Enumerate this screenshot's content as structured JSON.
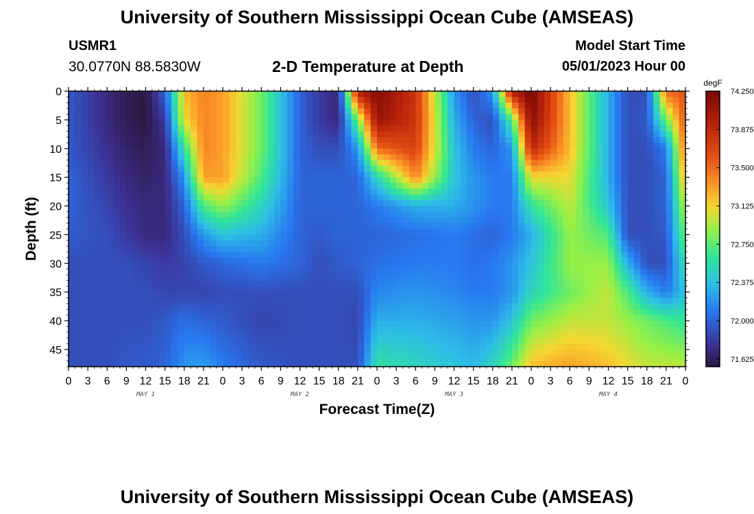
{
  "header": {
    "title": "University of Southern Mississippi Ocean Cube (AMSEAS)",
    "station": "USMR1",
    "coords": "30.0770N  88.5830W",
    "subtitle": "2-D Temperature at Depth",
    "model_start_label": "Model Start Time",
    "model_start_value": "05/01/2023 Hour 00"
  },
  "footer": {
    "title": "University of Southern Mississippi Ocean Cube (AMSEAS)"
  },
  "chart_data": {
    "type": "heatmap",
    "xlabel": "Forecast Time(Z)",
    "ylabel": "Depth (ft)",
    "x_ticks": [
      "0",
      "3",
      "6",
      "9",
      "12",
      "15",
      "18",
      "21",
      "0",
      "3",
      "6",
      "9",
      "12",
      "15",
      "18",
      "21",
      "0",
      "3",
      "6",
      "9",
      "12",
      "15",
      "18",
      "21",
      "0",
      "3",
      "6",
      "9",
      "12",
      "15",
      "18",
      "21",
      "0"
    ],
    "x_range_hours": [
      0,
      96
    ],
    "day_labels": [
      {
        "label": "MAY 1",
        "hour": 12
      },
      {
        "label": "MAY 2",
        "hour": 36
      },
      {
        "label": "MAY 3",
        "hour": 60
      },
      {
        "label": "MAY 4",
        "hour": 84
      }
    ],
    "y_ticks": [
      0,
      5,
      10,
      15,
      20,
      25,
      30,
      35,
      40,
      45
    ],
    "y_range": [
      0,
      48
    ],
    "y_inverted": true,
    "colorbar": {
      "unit": "degF",
      "min": 71.55,
      "max": 74.25,
      "ticks": [
        "74.250",
        "73.875",
        "73.500",
        "73.125",
        "72.750",
        "72.375",
        "72.000",
        "71.625"
      ]
    },
    "depths": [
      0,
      5,
      10,
      15,
      20,
      25,
      30,
      35,
      40,
      48
    ],
    "hours": [
      0,
      6,
      9,
      12,
      15,
      18,
      21,
      24,
      30,
      36,
      39,
      42,
      45,
      48,
      54,
      60,
      63,
      66,
      69,
      72,
      78,
      84,
      87,
      90,
      93,
      96
    ],
    "temperature": [
      [
        71.95,
        71.7,
        71.6,
        71.55,
        72.0,
        73.2,
        73.4,
        73.3,
        72.8,
        72.0,
        71.8,
        71.7,
        74.0,
        74.2,
        73.8,
        72.2,
        71.9,
        72.2,
        74.0,
        74.25,
        73.2,
        72.3,
        71.9,
        71.9,
        73.5,
        73.6
      ],
      [
        71.95,
        71.7,
        71.6,
        71.55,
        71.8,
        73.1,
        73.4,
        73.3,
        72.8,
        72.0,
        71.8,
        71.7,
        72.8,
        74.1,
        73.8,
        72.3,
        72.0,
        71.9,
        72.7,
        74.2,
        73.2,
        72.3,
        71.9,
        71.95,
        72.8,
        73.6
      ],
      [
        71.95,
        71.75,
        71.65,
        71.6,
        71.7,
        72.6,
        73.4,
        73.3,
        72.8,
        72.0,
        71.9,
        71.9,
        72.2,
        73.5,
        73.7,
        72.4,
        72.1,
        72.0,
        72.2,
        73.9,
        73.2,
        72.3,
        71.9,
        71.9,
        72.1,
        73.5
      ],
      [
        72.0,
        71.8,
        71.7,
        71.65,
        71.7,
        72.2,
        73.3,
        73.3,
        72.7,
        72.0,
        72.0,
        72.0,
        72.0,
        72.5,
        73.4,
        72.4,
        72.2,
        72.1,
        72.1,
        73.1,
        73.1,
        72.3,
        71.9,
        71.9,
        72.0,
        73.3
      ],
      [
        72.0,
        71.85,
        71.75,
        71.7,
        71.7,
        72.0,
        72.7,
        72.9,
        72.5,
        72.0,
        72.0,
        72.0,
        72.0,
        72.1,
        72.3,
        72.3,
        72.2,
        72.1,
        72.1,
        72.6,
        73.0,
        72.4,
        71.9,
        71.9,
        72.0,
        73.0
      ],
      [
        71.95,
        71.9,
        71.8,
        71.7,
        71.7,
        71.9,
        72.2,
        72.4,
        72.3,
        72.0,
        71.95,
        72.0,
        72.0,
        72.0,
        72.05,
        72.1,
        72.05,
        72.0,
        72.1,
        72.3,
        72.9,
        72.7,
        71.9,
        71.9,
        71.95,
        72.8
      ],
      [
        71.9,
        71.9,
        71.9,
        71.85,
        71.8,
        71.85,
        71.95,
        72.0,
        72.1,
        72.0,
        71.9,
        71.95,
        72.0,
        72.05,
        72.1,
        72.1,
        72.05,
        72.1,
        72.2,
        72.4,
        72.9,
        72.9,
        72.3,
        71.9,
        71.9,
        72.6
      ],
      [
        71.9,
        71.9,
        71.9,
        71.9,
        71.85,
        71.85,
        71.85,
        71.9,
        71.9,
        71.9,
        71.9,
        71.9,
        71.9,
        72.15,
        72.2,
        72.15,
        72.1,
        72.1,
        72.2,
        72.5,
        72.8,
        73.0,
        72.7,
        72.3,
        72.1,
        72.4
      ],
      [
        71.9,
        71.9,
        71.9,
        71.9,
        71.95,
        72.05,
        72.0,
        71.95,
        71.85,
        71.9,
        71.9,
        71.9,
        71.85,
        72.3,
        72.3,
        72.25,
        72.2,
        72.2,
        72.4,
        72.8,
        73.0,
        73.0,
        72.9,
        72.8,
        72.7,
        72.6
      ],
      [
        71.9,
        71.9,
        71.95,
        71.95,
        72.0,
        72.2,
        72.25,
        72.1,
        71.95,
        71.9,
        71.9,
        71.9,
        71.9,
        72.6,
        72.5,
        72.4,
        72.35,
        72.5,
        72.8,
        73.2,
        73.3,
        73.2,
        73.1,
        73.0,
        73.0,
        73.0
      ]
    ]
  }
}
